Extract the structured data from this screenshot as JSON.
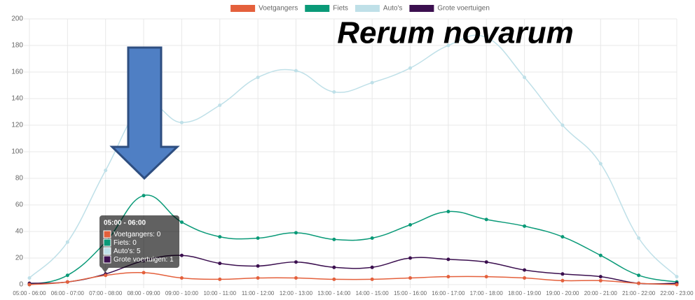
{
  "chart_data": {
    "type": "line",
    "categories": [
      "05:00 - 06:00",
      "06:00 - 07:00",
      "07:00 - 08:00",
      "08:00 - 09:00",
      "09:00 - 10:00",
      "10:00 - 11:00",
      "11:00 - 12:00",
      "12:00 - 13:00",
      "13:00 - 14:00",
      "14:00 - 15:00",
      "15:00 - 16:00",
      "16:00 - 17:00",
      "17:00 - 18:00",
      "18:00 - 19:00",
      "19:00 - 20:00",
      "20:00 - 21:00",
      "21:00 - 22:00",
      "22:00 - 23:00"
    ],
    "series": [
      {
        "name": "Voetgangers",
        "color": "#e4603c",
        "values": [
          0,
          2,
          7,
          9,
          5,
          4,
          5,
          5,
          4,
          4,
          5,
          6,
          6,
          5,
          3,
          3,
          1,
          0
        ]
      },
      {
        "name": "Fiets",
        "color": "#0a9a78",
        "values": [
          0,
          7,
          32,
          67,
          47,
          36,
          35,
          39,
          34,
          35,
          45,
          55,
          49,
          44,
          36,
          22,
          7,
          2
        ]
      },
      {
        "name": "Auto's",
        "color": "#bfe0e8",
        "values": [
          5,
          32,
          86,
          135,
          122,
          135,
          156,
          161,
          145,
          152,
          163,
          180,
          186,
          156,
          120,
          91,
          35,
          6
        ]
      },
      {
        "name": "Grote voertuigen",
        "color": "#3b0f4f",
        "values": [
          1,
          2,
          8,
          18,
          22,
          16,
          14,
          17,
          13,
          13,
          20,
          19,
          17,
          11,
          8,
          6,
          1,
          1
        ]
      }
    ],
    "ylim": [
      0,
      200
    ],
    "yticks": [
      0,
      20,
      40,
      60,
      80,
      100,
      120,
      140,
      160,
      180,
      200
    ],
    "grid": true,
    "legend": "top",
    "annotation": "Rerum novarum"
  }
}
